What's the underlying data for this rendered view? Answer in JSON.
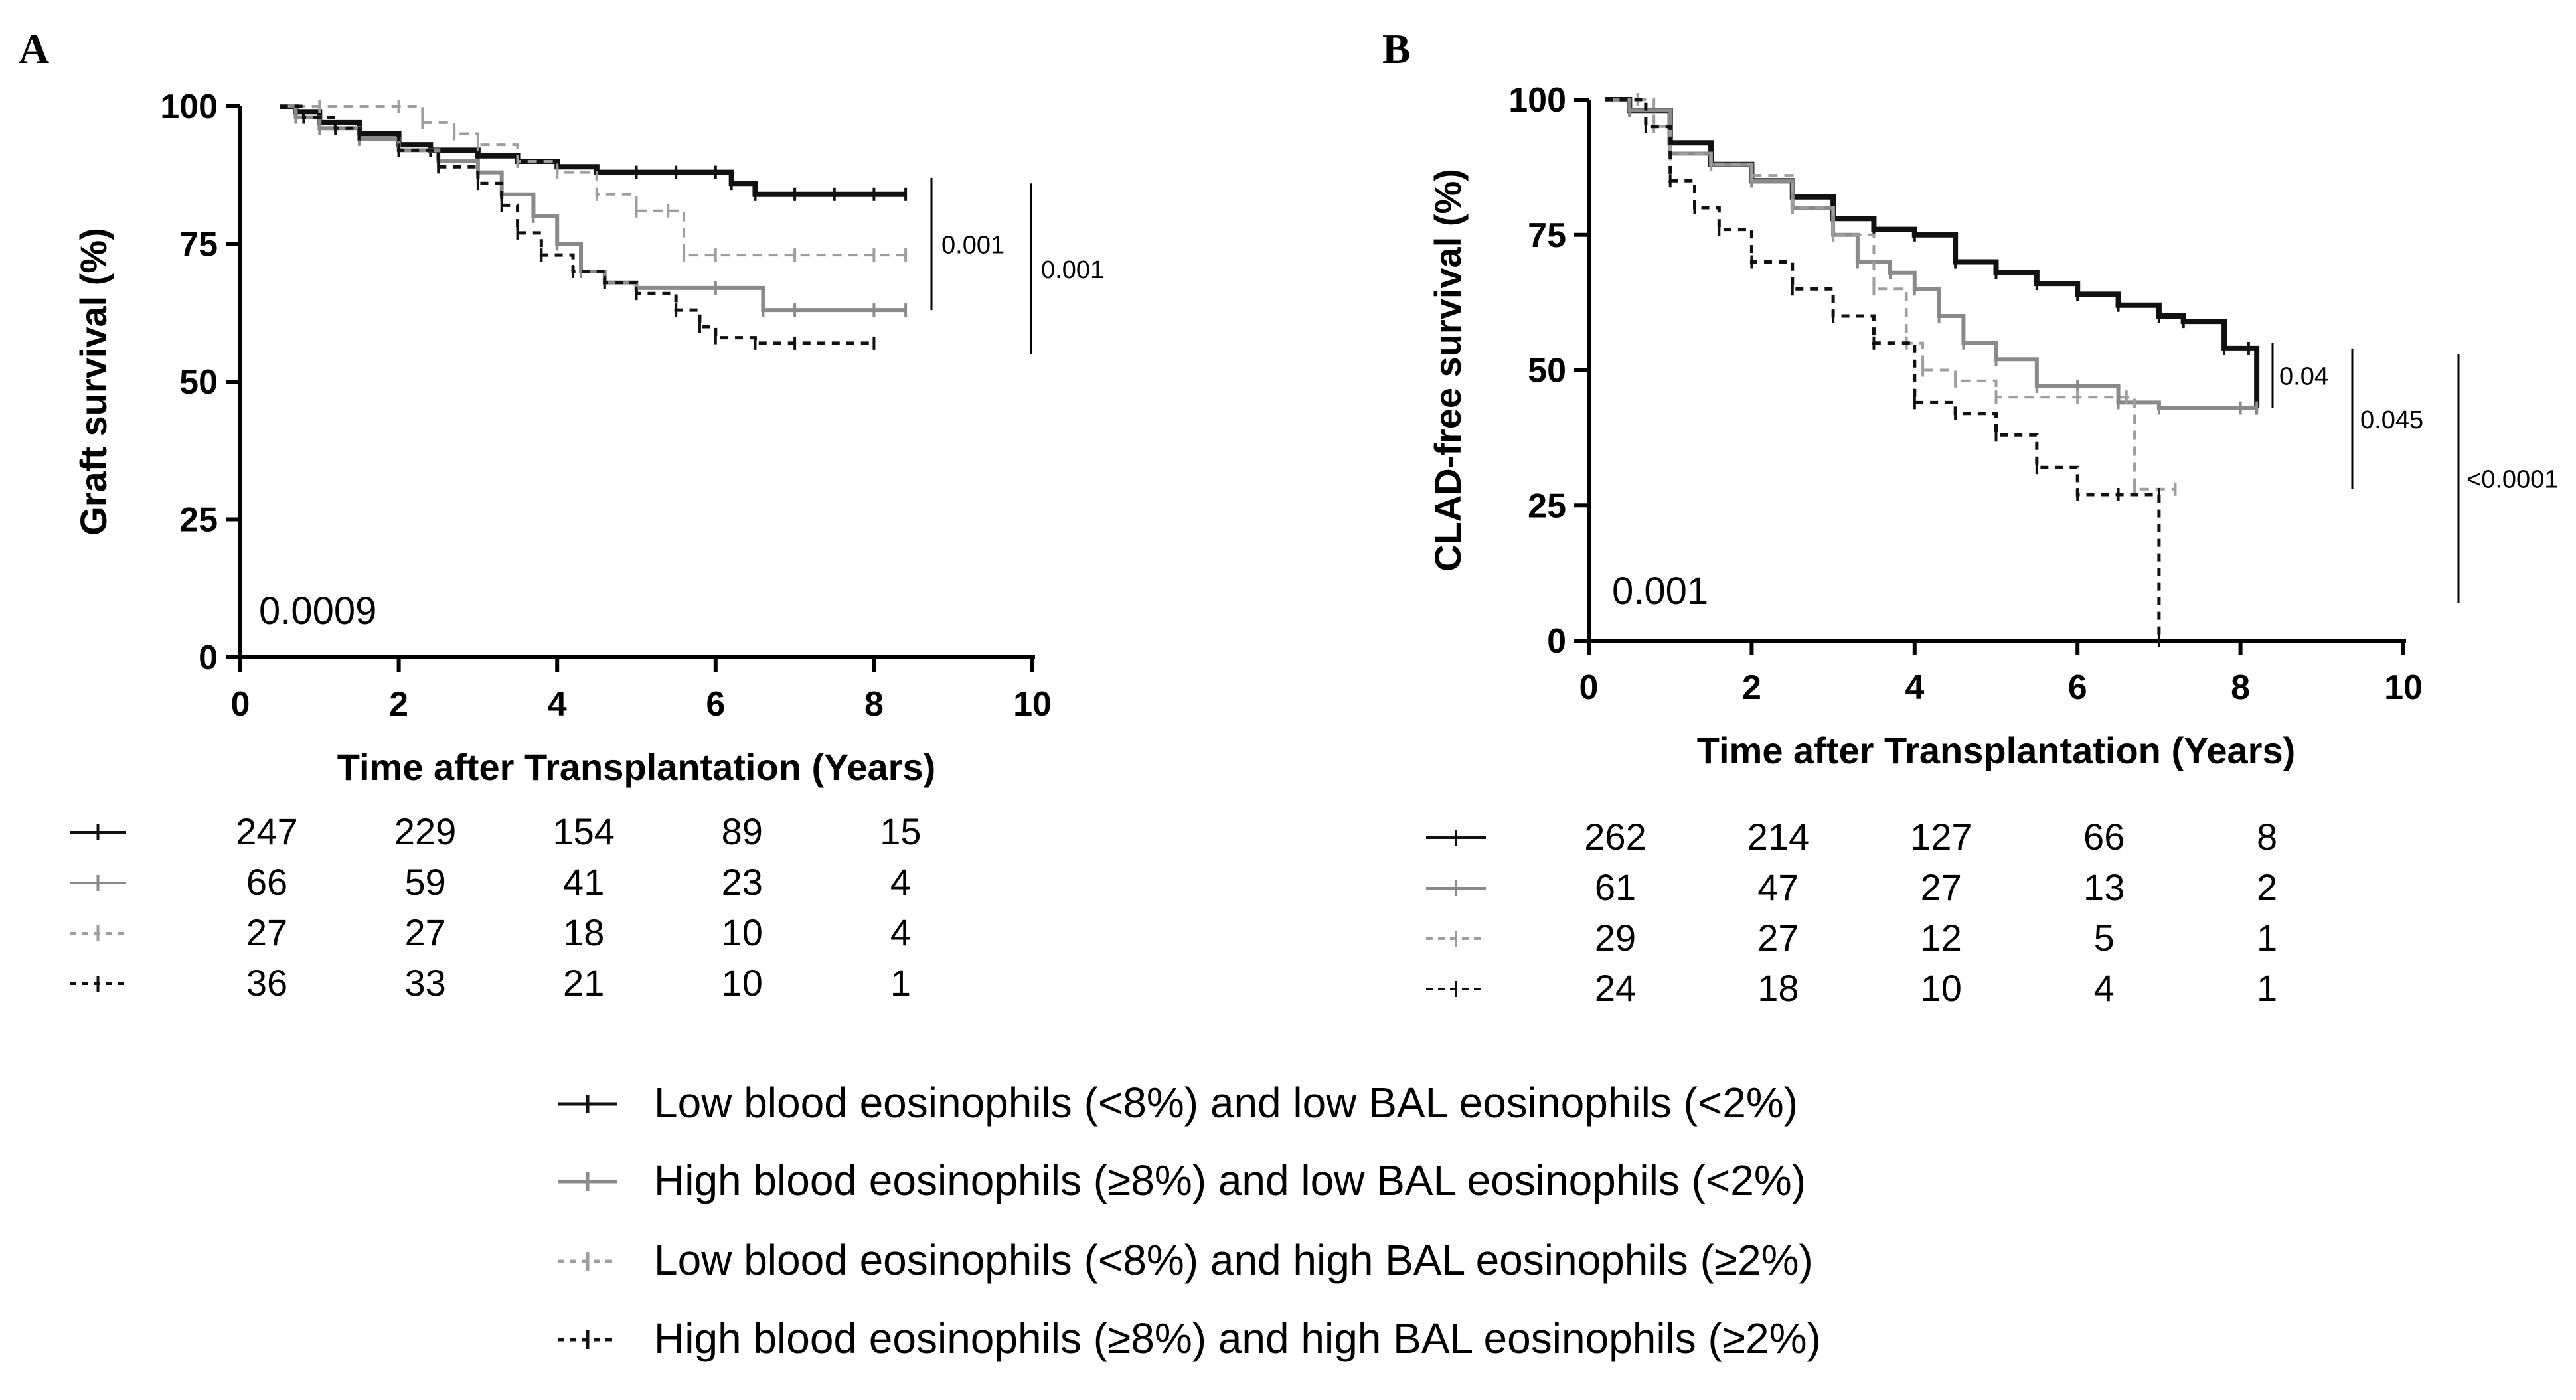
{
  "chart_data": [
    {
      "type": "line",
      "panel_label": "A",
      "title": "",
      "xlabel": "Time after Transplantation (Years)",
      "ylabel": "Graft survival (%)",
      "xlim": [
        0,
        10
      ],
      "ylim": [
        0,
        100
      ],
      "xticks": [
        "0",
        "2",
        "4",
        "6",
        "8",
        "10"
      ],
      "yticks": [
        "0",
        "25",
        "50",
        "75",
        "100"
      ],
      "overall_p": "0.0009",
      "pairwise_p": [
        {
          "label": "0.001",
          "y_range": [
            63,
            87
          ]
        },
        {
          "label": "0.001",
          "y_range": [
            55,
            86
          ]
        }
      ],
      "series": [
        {
          "name": "Low blood eosinophils (<8%) and low BAL eosinophils (<2%)",
          "x": [
            0.5,
            0.7,
            1.0,
            1.5,
            2.0,
            2.4,
            3.0,
            3.5,
            4.0,
            4.5,
            5.0,
            5.5,
            6.0,
            6.2,
            6.5,
            7.0,
            7.5,
            8.0,
            8.4
          ],
          "y": [
            100,
            99,
            97,
            95,
            93,
            92,
            91,
            90,
            89,
            88,
            88,
            88,
            88,
            86,
            84,
            84,
            84,
            84,
            84
          ]
        },
        {
          "name": "High blood eosinophils (≥8%) and low BAL eosinophils (<2%)",
          "x": [
            0.5,
            0.7,
            1.0,
            1.5,
            2.0,
            2.5,
            3.0,
            3.3,
            3.7,
            4.0,
            4.3,
            4.6,
            5.0,
            6.0,
            6.6,
            7.0,
            8.0,
            8.4
          ],
          "y": [
            100,
            98,
            96,
            94,
            92,
            90,
            88,
            84,
            80,
            75,
            70,
            68,
            67,
            67,
            63,
            63,
            63,
            63
          ]
        },
        {
          "name": "Low blood eosinophils (<8%) and high BAL eosinophils (≥2%)",
          "x": [
            0.5,
            1.0,
            2.0,
            2.3,
            2.7,
            3.0,
            3.5,
            4.0,
            4.5,
            5.0,
            5.4,
            5.6,
            6.0,
            7.0,
            8.0,
            8.4
          ],
          "y": [
            100,
            100,
            100,
            97,
            95,
            93,
            90,
            88,
            84,
            81,
            81,
            73,
            73,
            73,
            73,
            73
          ]
        },
        {
          "name": "High blood eosinophils (≥8%) and high BAL eosinophils (≥2%)",
          "x": [
            0.5,
            0.8,
            1.2,
            1.5,
            2.0,
            2.5,
            3.0,
            3.3,
            3.5,
            3.8,
            4.2,
            4.6,
            5.0,
            5.5,
            5.8,
            6.0,
            6.5,
            7.0,
            8.0
          ],
          "y": [
            100,
            98,
            96,
            95,
            92,
            89,
            86,
            82,
            77,
            73,
            70,
            68,
            66,
            63,
            60,
            58,
            57,
            57,
            57
          ]
        }
      ],
      "numbers_at_risk": [
        [
          "247",
          "229",
          "154",
          "89",
          "15"
        ],
        [
          "66",
          "59",
          "41",
          "23",
          "4"
        ],
        [
          "27",
          "27",
          "18",
          "10",
          "4"
        ],
        [
          "36",
          "33",
          "21",
          "10",
          "1"
        ]
      ]
    },
    {
      "type": "line",
      "panel_label": "B",
      "title": "",
      "xlabel": "Time after Transplantation (Years)",
      "ylabel": "CLAD-free survival (%)",
      "xlim": [
        0,
        10
      ],
      "ylim": [
        0,
        100
      ],
      "xticks": [
        "0",
        "2",
        "4",
        "6",
        "8",
        "10"
      ],
      "yticks": [
        "0",
        "25",
        "50",
        "75",
        "100"
      ],
      "overall_p": "0.001",
      "pairwise_p": [
        {
          "label": "0.04",
          "y_range": [
            43,
            55
          ]
        },
        {
          "label": "0.045",
          "y_range": [
            28,
            54
          ]
        },
        {
          "label": "<0.0001",
          "y_range": [
            7,
            53
          ]
        }
      ],
      "series": [
        {
          "name": "Low blood eosinophils (<8%) and low BAL eosinophils (<2%)",
          "x": [
            0.2,
            0.5,
            1.0,
            1.5,
            2.0,
            2.5,
            3.0,
            3.5,
            4.0,
            4.5,
            5.0,
            5.5,
            6.0,
            6.5,
            7.0,
            7.3,
            7.8,
            8.1,
            8.2
          ],
          "y": [
            100,
            98,
            92,
            88,
            85,
            82,
            78,
            76,
            75,
            70,
            68,
            66,
            64,
            62,
            60,
            59,
            54,
            54,
            43
          ]
        },
        {
          "name": "High blood eosinophils (≥8%) and low BAL eosinophils (<2%)",
          "x": [
            0.2,
            0.5,
            1.0,
            1.5,
            2.0,
            2.5,
            3.0,
            3.3,
            3.7,
            4.0,
            4.3,
            4.6,
            5.0,
            5.5,
            6.0,
            6.5,
            7.0,
            8.0,
            8.2
          ],
          "y": [
            100,
            98,
            90,
            88,
            85,
            80,
            75,
            70,
            68,
            65,
            60,
            55,
            52,
            47,
            47,
            44,
            43,
            43,
            43
          ]
        },
        {
          "name": "Low blood eosinophils (<8%) and high BAL eosinophils (≥2%)",
          "x": [
            0.2,
            0.6,
            0.8,
            1.0,
            1.5,
            2.0,
            2.5,
            3.0,
            3.5,
            3.9,
            4.1,
            4.5,
            5.0,
            6.0,
            6.6,
            6.7,
            7.2
          ],
          "y": [
            100,
            100,
            95,
            90,
            88,
            86,
            80,
            75,
            65,
            55,
            50,
            48,
            45,
            45,
            45,
            28,
            28
          ]
        },
        {
          "name": "High blood eosinophils (≥8%) and high BAL eosinophils (≥2%)",
          "x": [
            0.2,
            0.7,
            1.0,
            1.3,
            1.6,
            2.0,
            2.5,
            3.0,
            3.5,
            4.0,
            4.5,
            5.0,
            5.5,
            6.0,
            6.5,
            7.0,
            7.0
          ],
          "y": [
            100,
            95,
            85,
            80,
            76,
            70,
            65,
            60,
            55,
            44,
            42,
            38,
            32,
            27,
            27,
            27,
            0
          ]
        }
      ],
      "numbers_at_risk": [
        [
          "262",
          "214",
          "127",
          "66",
          "8"
        ],
        [
          "61",
          "47",
          "27",
          "13",
          "2"
        ],
        [
          "29",
          "27",
          "12",
          "5",
          "1"
        ],
        [
          "24",
          "18",
          "10",
          "4",
          "1"
        ]
      ]
    }
  ],
  "series_styles": [
    {
      "color": "#111111",
      "dash": "",
      "width": 8
    },
    {
      "color": "#8a8a8a",
      "dash": "",
      "width": 6
    },
    {
      "color": "#9e9e9e",
      "dash": "14 10",
      "width": 4
    },
    {
      "color": "#111111",
      "dash": "12 10",
      "width": 5
    }
  ],
  "legend": [
    "Low blood eosinophils (<8%) and low BAL eosinophils (<2%)",
    "High blood eosinophils (≥8%) and low BAL eosinophils (<2%)",
    "Low blood eosinophils (<8%) and high BAL eosinophils (≥2%)",
    "High blood eosinophils (≥8%) and high BAL eosinophils (≥2%)"
  ]
}
